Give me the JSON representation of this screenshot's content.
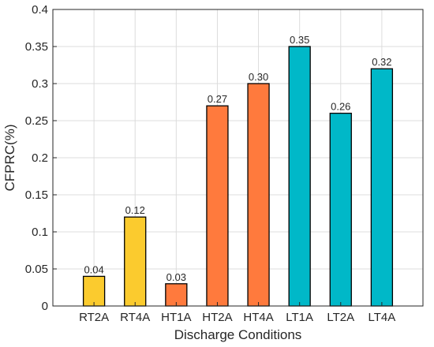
{
  "chart_data": {
    "type": "bar",
    "categories": [
      "RT2A",
      "RT4A",
      "HT1A",
      "HT2A",
      "HT4A",
      "LT1A",
      "LT2A",
      "LT4A"
    ],
    "values": [
      0.04,
      0.12,
      0.03,
      0.27,
      0.3,
      0.35,
      0.26,
      0.32
    ],
    "data_labels": [
      "0.04",
      "0.12",
      "0.03",
      "0.27",
      "0.30",
      "0.35",
      "0.26",
      "0.32"
    ],
    "bar_colors": [
      "#FBCB2E",
      "#FBCB2E",
      "#FF7A3D",
      "#FF7A3D",
      "#FF7A3D",
      "#00B8C8",
      "#00B8C8",
      "#00B8C8"
    ],
    "xlabel": "Discharge Conditions",
    "ylabel": "CFPRC(%)",
    "ylim": [
      0,
      0.4
    ],
    "yticks": [
      0,
      0.05,
      0.1,
      0.15,
      0.2,
      0.25,
      0.3,
      0.35,
      0.4
    ],
    "ytick_labels": [
      "0",
      "0.05",
      "0.1",
      "0.15",
      "0.2",
      "0.25",
      "0.3",
      "0.35",
      "0.4"
    ],
    "grid": true
  }
}
